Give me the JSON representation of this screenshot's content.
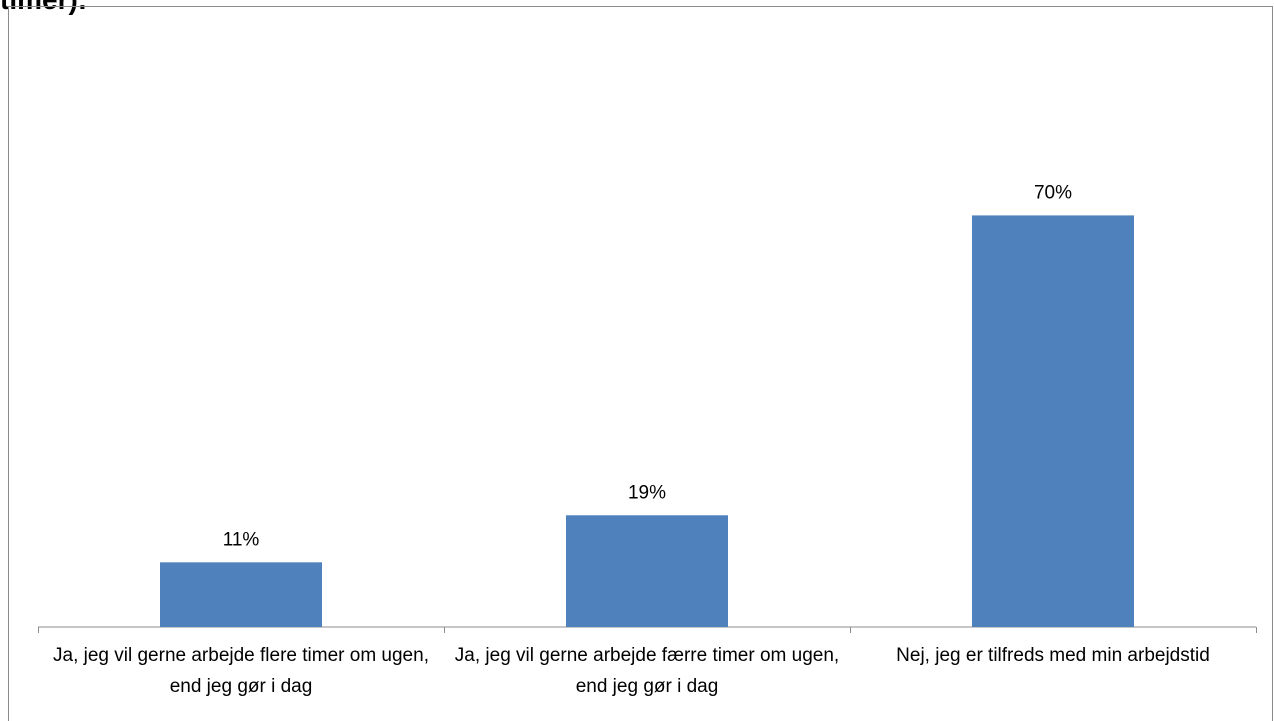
{
  "chart_data": {
    "type": "bar",
    "title": "timer):",
    "categories": [
      "Ja, jeg vil gerne arbejde flere timer om ugen, end jeg gør i dag",
      "Ja, jeg vil gerne arbejde færre timer om ugen, end jeg gør i dag",
      "Nej, jeg er tilfreds med min arbejdstid"
    ],
    "values": [
      11,
      19,
      70
    ],
    "data_labels": [
      "11%",
      "19%",
      "70%"
    ],
    "unit": "%",
    "ylim": [
      0,
      100
    ],
    "grid": false,
    "legend": "none",
    "bar_color": "#4f81bd",
    "axis_color": "#8c8c8c"
  }
}
